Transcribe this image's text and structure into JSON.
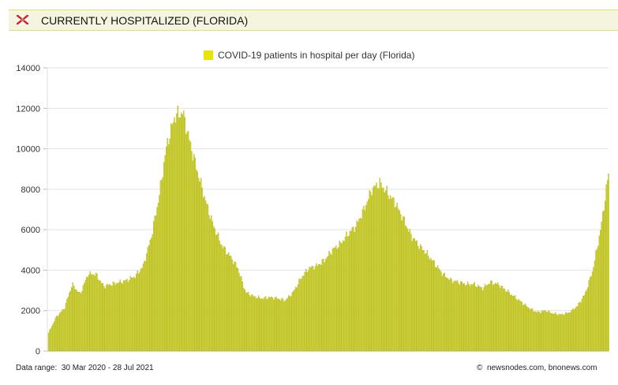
{
  "header": {
    "title": "CURRENTLY HOSPITALIZED (FLORIDA)",
    "icon": "florida-flag-icon"
  },
  "footer": {
    "range_label": "Data range:",
    "range_start": "30 Mar 2020",
    "range_sep": "-",
    "range_end": "28 Jul 2021",
    "copyright_symbol": "©",
    "credit": "newsnodes.com, bnonews.com"
  },
  "chart_data": {
    "type": "bar",
    "title": "",
    "legend": {
      "position": "top-center",
      "label": "COVID-19 patients in hospital per day (Florida)"
    },
    "colors": {
      "fill": "#d6d640",
      "edge": "#a9b000",
      "legend": "#e6e600"
    },
    "grid": true,
    "ylim": [
      0,
      14000
    ],
    "yticks": [
      "0",
      "2000",
      "4000",
      "6000",
      "8000",
      "10000",
      "12000",
      "14000"
    ],
    "x_start": "2020-03-30",
    "x_end": "2021-07-28",
    "weekly_values": [
      900,
      1700,
      2100,
      3300,
      2800,
      3800,
      3800,
      3200,
      3300,
      3400,
      3500,
      3700,
      4200,
      5600,
      7600,
      10200,
      11600,
      11800,
      10200,
      8700,
      7300,
      6100,
      5200,
      4700,
      4100,
      2900,
      2700,
      2600,
      2650,
      2600,
      2500,
      2900,
      3600,
      4100,
      4200,
      4500,
      5000,
      5300,
      5800,
      6200,
      7000,
      8000,
      8300,
      7800,
      7300,
      6500,
      5700,
      5200,
      4800,
      4300,
      3800,
      3500,
      3400,
      3300,
      3300,
      3100,
      3400,
      3300,
      3000,
      2700,
      2400,
      2100,
      1900,
      2000,
      1850,
      1800,
      1900,
      2200,
      2800,
      4000,
      6000,
      8800
    ]
  }
}
